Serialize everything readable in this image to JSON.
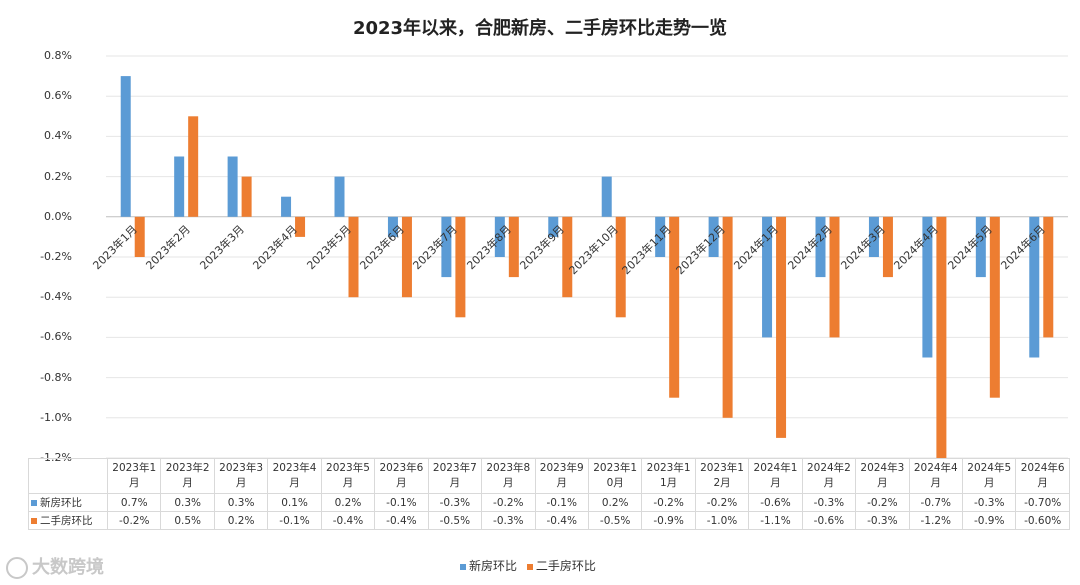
{
  "chart_data": {
    "type": "bar",
    "title": "2023年以来，合肥新房、二手房环比走势一览",
    "categories": [
      "2023年1月",
      "2023年2月",
      "2023年3月",
      "2023年4月",
      "2023年5月",
      "2023年6月",
      "2023年7月",
      "2023年8月",
      "2023年9月",
      "2023年10月",
      "2023年11月",
      "2023年12月",
      "2024年1月",
      "2024年2月",
      "2024年3月",
      "2024年4月",
      "2024年5月",
      "2024年6月"
    ],
    "table_header": [
      [
        "2023年1",
        "月"
      ],
      [
        "2023年2",
        "月"
      ],
      [
        "2023年3",
        "月"
      ],
      [
        "2023年4",
        "月"
      ],
      [
        "2023年5",
        "月"
      ],
      [
        "2023年6",
        "月"
      ],
      [
        "2023年7",
        "月"
      ],
      [
        "2023年8",
        "月"
      ],
      [
        "2023年9",
        "月"
      ],
      [
        "2023年1",
        "0月"
      ],
      [
        "2023年1",
        "1月"
      ],
      [
        "2023年1",
        "2月"
      ],
      [
        "2024年1",
        "月"
      ],
      [
        "2024年2",
        "月"
      ],
      [
        "2024年3",
        "月"
      ],
      [
        "2024年4",
        "月"
      ],
      [
        "2024年5",
        "月"
      ],
      [
        "2024年6",
        "月"
      ]
    ],
    "series": [
      {
        "name": "新房环比",
        "color": "#5b9bd5",
        "values": [
          0.7,
          0.3,
          0.3,
          0.1,
          0.2,
          -0.1,
          -0.3,
          -0.2,
          -0.1,
          0.2,
          -0.2,
          -0.2,
          -0.6,
          -0.3,
          -0.2,
          -0.7,
          -0.3,
          -0.7
        ],
        "labels": [
          "0.7%",
          "0.3%",
          "0.3%",
          "0.1%",
          "0.2%",
          "-0.1%",
          "-0.3%",
          "-0.2%",
          "-0.1%",
          "0.2%",
          "-0.2%",
          "-0.2%",
          "-0.6%",
          "-0.3%",
          "-0.2%",
          "-0.7%",
          "-0.3%",
          "-0.70%"
        ]
      },
      {
        "name": "二手房环比",
        "color": "#ed7d31",
        "values": [
          -0.2,
          0.5,
          0.2,
          -0.1,
          -0.4,
          -0.4,
          -0.5,
          -0.3,
          -0.4,
          -0.5,
          -0.9,
          -1.0,
          -1.1,
          -0.6,
          -0.3,
          -1.2,
          -0.9,
          -0.6
        ],
        "labels": [
          "-0.2%",
          "0.5%",
          "0.2%",
          "-0.1%",
          "-0.4%",
          "-0.4%",
          "-0.5%",
          "-0.3%",
          "-0.4%",
          "-0.5%",
          "-0.9%",
          "-1.0%",
          "-1.1%",
          "-0.6%",
          "-0.3%",
          "-1.2%",
          "-0.9%",
          "-0.60%"
        ]
      }
    ],
    "yticks": [
      0.8,
      0.6,
      0.4,
      0.2,
      0.0,
      -0.2,
      -0.4,
      -0.6,
      -0.8,
      -1.0,
      -1.2
    ],
    "ytick_labels": [
      "0.8%",
      "0.6%",
      "0.4%",
      "0.2%",
      "0.0%",
      "-0.2%",
      "-0.4%",
      "-0.6%",
      "-0.8%",
      "-1.0%",
      "-1.2%"
    ],
    "ylim": [
      -1.2,
      0.8
    ],
    "grid": true,
    "legend_position": "bottom"
  },
  "watermark": "大数跨境"
}
